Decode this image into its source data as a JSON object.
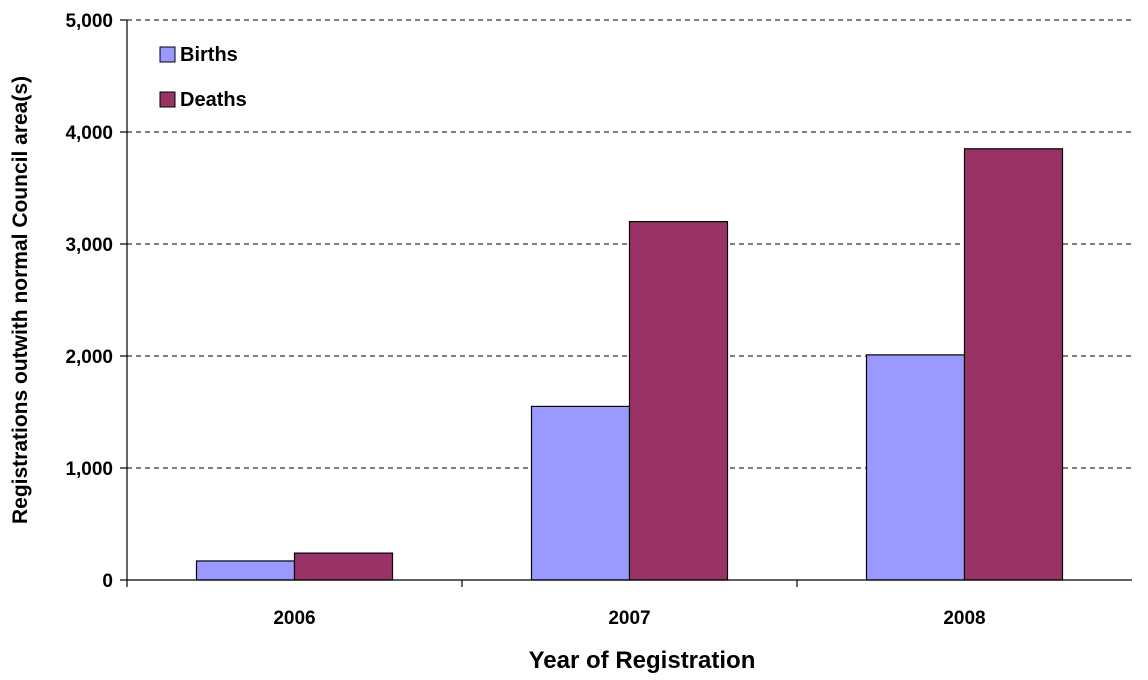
{
  "chart_data": {
    "type": "bar",
    "title": "",
    "xlabel": "Year of Registration",
    "ylabel": "Registrations outwith normal Council area(s)",
    "categories": [
      "2006",
      "2007",
      "2008"
    ],
    "series": [
      {
        "name": "Births",
        "color": "#9999ff",
        "values": [
          170,
          1550,
          2010
        ]
      },
      {
        "name": "Deaths",
        "color": "#993366",
        "values": [
          240,
          3200,
          3850
        ]
      }
    ],
    "ylim": [
      0,
      5000
    ],
    "yticks": [
      0,
      1000,
      2000,
      3000,
      4000,
      5000
    ],
    "ytick_labels": [
      "0",
      "1,000",
      "2,000",
      "3,000",
      "4,000",
      "5,000"
    ],
    "grid": "horizontal dashed",
    "legend_position": "top-left"
  }
}
